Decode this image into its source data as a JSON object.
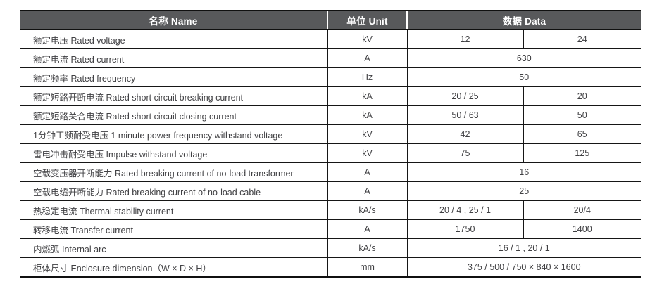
{
  "table": {
    "headers": {
      "name": "名称 Name",
      "unit": "单位 Unit",
      "data": "数据 Data"
    },
    "rows": [
      {
        "name": "额定电压 Rated voltage",
        "unit": "kV",
        "data": [
          "12",
          "24"
        ]
      },
      {
        "name": "额定电流 Rated current",
        "unit": "A",
        "data": [
          "630"
        ]
      },
      {
        "name": "额定频率 Rated frequency",
        "unit": "Hz",
        "data": [
          "50"
        ]
      },
      {
        "name": "额定短路开断电流 Rated short circuit breaking current",
        "unit": "kA",
        "data": [
          "20 / 25",
          "20"
        ]
      },
      {
        "name": "额定短路关合电流 Rated short circuit closing current",
        "unit": "kA",
        "data": [
          "50 / 63",
          "50"
        ]
      },
      {
        "name": "1分钟工频耐受电压 1 minute power frequency withstand voltage",
        "unit": "kV",
        "data": [
          "42",
          "65"
        ]
      },
      {
        "name": "雷电冲击耐受电压 Impulse withstand voltage",
        "unit": "kV",
        "data": [
          "75",
          "125"
        ]
      },
      {
        "name": "空载变压器开断能力 Rated breaking current of no-load transformer",
        "unit": "A",
        "data": [
          "16"
        ]
      },
      {
        "name": "空载电缆开断能力 Rated breaking current of no-load cable",
        "unit": "A",
        "data": [
          "25"
        ]
      },
      {
        "name": "热稳定电流 Thermal stability current",
        "unit": "kA/s",
        "data": [
          "20 / 4 , 25 / 1",
          "20/4"
        ]
      },
      {
        "name": "转移电流 Transfer current",
        "unit": "A",
        "data": [
          "1750",
          "1400"
        ]
      },
      {
        "name": "内燃弧 Internal arc",
        "unit": "kA/s",
        "data": [
          "16 / 1 , 20 / 1"
        ]
      },
      {
        "name": "柜体尺寸 Enclosure dimension（W × D × H）",
        "unit": "mm",
        "data": [
          "375 / 500 / 750 × 840 × 1600"
        ]
      }
    ],
    "colors": {
      "header_bg": "#58595b",
      "header_text": "#ffffff",
      "body_text": "#404043",
      "border": "#161616"
    }
  }
}
